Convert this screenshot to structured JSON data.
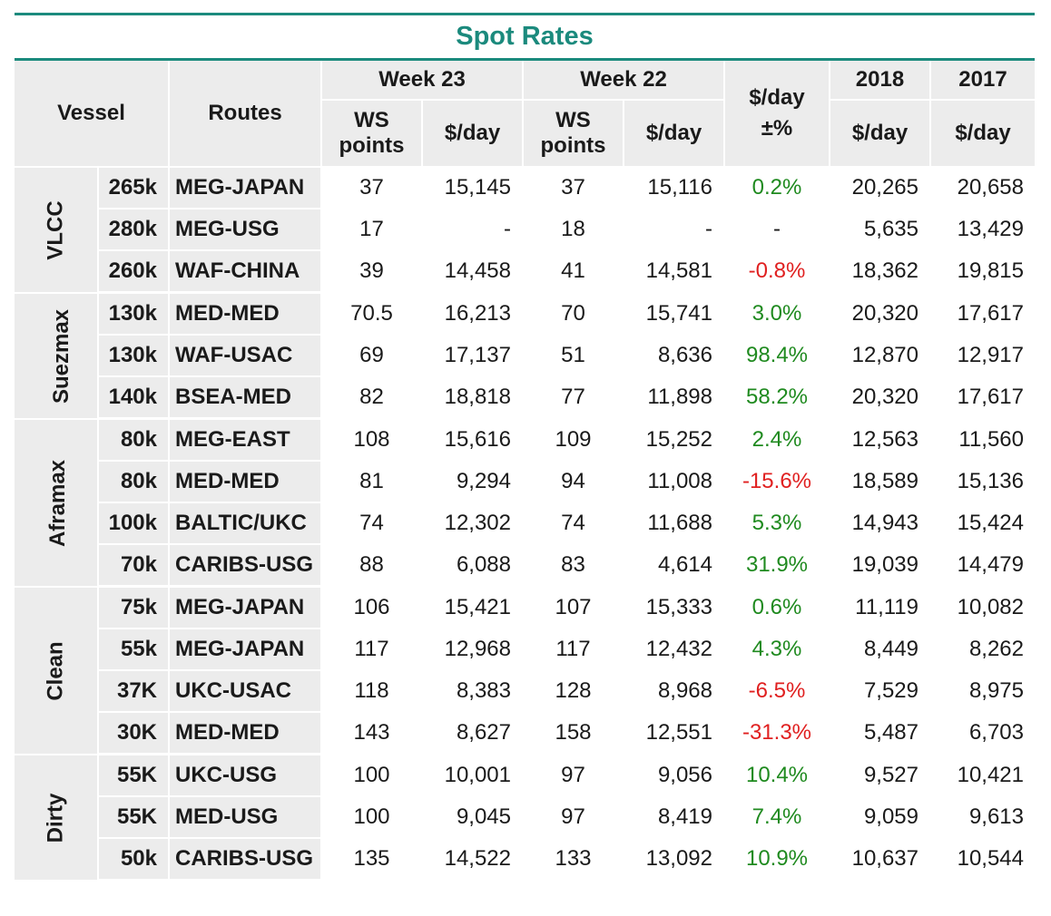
{
  "title": "Spot Rates",
  "header": {
    "vessel": "Vessel",
    "routes": "Routes",
    "week23": "Week 23",
    "week22": "Week 22",
    "change": "$/day\n±%",
    "change_line1": "$/day",
    "change_line2": "±%",
    "y2018": "2018",
    "y2017": "2017",
    "ws_line1": "WS",
    "ws_line2": "points",
    "day": "$/day"
  },
  "groups": [
    {
      "name": "VLCC",
      "rows": [
        {
          "size": "265k",
          "route": "MEG-JAPAN",
          "w23_ws": "37",
          "w23_day": "15,145",
          "w22_ws": "37",
          "w22_day": "15,116",
          "change": "0.2%",
          "sign": "pos",
          "y2018": "20,265",
          "y2017": "20,658"
        },
        {
          "size": "280k",
          "route": "MEG-USG",
          "w23_ws": "17",
          "w23_day": "-",
          "w22_ws": "18",
          "w22_day": "-",
          "change": "-",
          "sign": "neu",
          "y2018": "5,635",
          "y2017": "13,429"
        },
        {
          "size": "260k",
          "route": "WAF-CHINA",
          "w23_ws": "39",
          "w23_day": "14,458",
          "w22_ws": "41",
          "w22_day": "14,581",
          "change": "-0.8%",
          "sign": "neg",
          "y2018": "18,362",
          "y2017": "19,815"
        }
      ]
    },
    {
      "name": "Suezmax",
      "rows": [
        {
          "size": "130k",
          "route": "MED-MED",
          "w23_ws": "70.5",
          "w23_day": "16,213",
          "w22_ws": "70",
          "w22_day": "15,741",
          "change": "3.0%",
          "sign": "pos",
          "y2018": "20,320",
          "y2017": "17,617"
        },
        {
          "size": "130k",
          "route": "WAF-USAC",
          "w23_ws": "69",
          "w23_day": "17,137",
          "w22_ws": "51",
          "w22_day": "8,636",
          "change": "98.4%",
          "sign": "pos",
          "y2018": "12,870",
          "y2017": "12,917"
        },
        {
          "size": "140k",
          "route": "BSEA-MED",
          "w23_ws": "82",
          "w23_day": "18,818",
          "w22_ws": "77",
          "w22_day": "11,898",
          "change": "58.2%",
          "sign": "pos",
          "y2018": "20,320",
          "y2017": "17,617"
        }
      ]
    },
    {
      "name": "Aframax",
      "rows": [
        {
          "size": "80k",
          "route": "MEG-EAST",
          "w23_ws": "108",
          "w23_day": "15,616",
          "w22_ws": "109",
          "w22_day": "15,252",
          "change": "2.4%",
          "sign": "pos",
          "y2018": "12,563",
          "y2017": "11,560"
        },
        {
          "size": "80k",
          "route": "MED-MED",
          "w23_ws": "81",
          "w23_day": "9,294",
          "w22_ws": "94",
          "w22_day": "11,008",
          "change": "-15.6%",
          "sign": "neg",
          "y2018": "18,589",
          "y2017": "15,136"
        },
        {
          "size": "100k",
          "route": "BALTIC/UKC",
          "w23_ws": "74",
          "w23_day": "12,302",
          "w22_ws": "74",
          "w22_day": "11,688",
          "change": "5.3%",
          "sign": "pos",
          "y2018": "14,943",
          "y2017": "15,424"
        },
        {
          "size": "70k",
          "route": "CARIBS-USG",
          "w23_ws": "88",
          "w23_day": "6,088",
          "w22_ws": "83",
          "w22_day": "4,614",
          "change": "31.9%",
          "sign": "pos",
          "y2018": "19,039",
          "y2017": "14,479"
        }
      ]
    },
    {
      "name": "Clean",
      "rows": [
        {
          "size": "75k",
          "route": "MEG-JAPAN",
          "w23_ws": "106",
          "w23_day": "15,421",
          "w22_ws": "107",
          "w22_day": "15,333",
          "change": "0.6%",
          "sign": "pos",
          "y2018": "11,119",
          "y2017": "10,082"
        },
        {
          "size": "55k",
          "route": "MEG-JAPAN",
          "w23_ws": "117",
          "w23_day": "12,968",
          "w22_ws": "117",
          "w22_day": "12,432",
          "change": "4.3%",
          "sign": "pos",
          "y2018": "8,449",
          "y2017": "8,262"
        },
        {
          "size": "37K",
          "route": "UKC-USAC",
          "w23_ws": "118",
          "w23_day": "8,383",
          "w22_ws": "128",
          "w22_day": "8,968",
          "change": "-6.5%",
          "sign": "neg",
          "y2018": "7,529",
          "y2017": "8,975"
        },
        {
          "size": "30K",
          "route": "MED-MED",
          "w23_ws": "143",
          "w23_day": "8,627",
          "w22_ws": "158",
          "w22_day": "12,551",
          "change": "-31.3%",
          "sign": "neg",
          "y2018": "5,487",
          "y2017": "6,703"
        }
      ]
    },
    {
      "name": "Dirty",
      "rows": [
        {
          "size": "55K",
          "route": "UKC-USG",
          "w23_ws": "100",
          "w23_day": "10,001",
          "w22_ws": "97",
          "w22_day": "9,056",
          "change": "10.4%",
          "sign": "pos",
          "y2018": "9,527",
          "y2017": "10,421"
        },
        {
          "size": "55K",
          "route": "MED-USG",
          "w23_ws": "100",
          "w23_day": "9,045",
          "w22_ws": "97",
          "w22_day": "8,419",
          "change": "7.4%",
          "sign": "pos",
          "y2018": "9,059",
          "y2017": "9,613"
        },
        {
          "size": "50k",
          "route": "CARIBS-USG",
          "w23_ws": "135",
          "w23_day": "14,522",
          "w22_ws": "133",
          "w22_day": "13,092",
          "change": "10.9%",
          "sign": "pos",
          "y2018": "10,637",
          "y2017": "10,544"
        }
      ]
    }
  ],
  "colors": {
    "accent": "#1b8a7d",
    "positive": "#1f8a1f",
    "negative": "#e02020",
    "header_bg": "#ececec"
  }
}
